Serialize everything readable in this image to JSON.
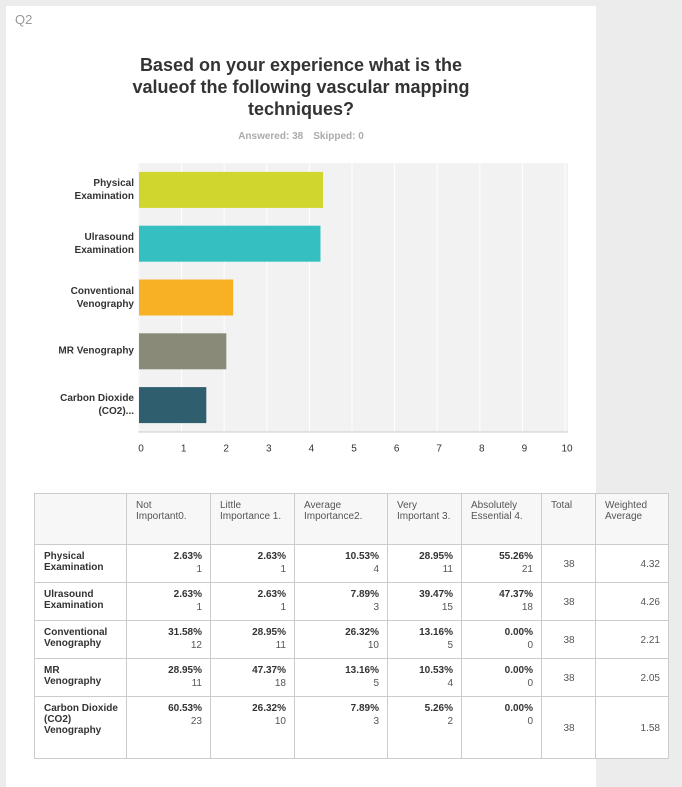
{
  "question": "Q2",
  "chart_data": {
    "type": "bar",
    "orientation": "horizontal",
    "title": "Based on your experience what is the valueof the following vascular mapping techniques?",
    "answered": "Answered: 38",
    "skipped": "Skipped: 0",
    "categories": [
      "Physical Examination",
      "Ulrasound Examination",
      "Conventional Venography",
      "MR Venography",
      "Carbon Dioxide (CO2)..."
    ],
    "values": [
      4.32,
      4.26,
      2.21,
      2.05,
      1.58
    ],
    "colors": [
      "#d0d62e",
      "#35bfc1",
      "#f8b125",
      "#898a78",
      "#2f5f6e"
    ],
    "xlim": [
      0,
      10
    ],
    "xticks": [
      0,
      1,
      2,
      3,
      4,
      5,
      6,
      7,
      8,
      9,
      10
    ],
    "grid": true
  },
  "table": {
    "header": [
      "Not Important0.",
      "Little Importance 1.",
      "Average Importance2.",
      "Very Important 3.",
      "Absolutely Essential 4.",
      "Total",
      "Weighted Average"
    ],
    "rows": [
      {
        "label": "Physical Examination",
        "cells": [
          {
            "percent": "2.63%",
            "count": 1
          },
          {
            "percent": "2.63%",
            "count": 1
          },
          {
            "percent": "10.53%",
            "count": 4
          },
          {
            "percent": "28.95%",
            "count": 11
          },
          {
            "percent": "55.26%",
            "count": 21
          }
        ],
        "total": 38
      },
      {
        "label": "Ulrasound Examination",
        "cells": [
          {
            "percent": "2.63%",
            "count": 1
          },
          {
            "percent": "2.63%",
            "count": 1
          },
          {
            "percent": "7.89%",
            "count": 3
          },
          {
            "percent": "39.47%",
            "count": 15
          },
          {
            "percent": "47.37%",
            "count": 18
          }
        ],
        "total": 38
      },
      {
        "label": "Conventional Venography",
        "cells": [
          {
            "percent": "31.58%",
            "count": 12
          },
          {
            "percent": "28.95%",
            "count": 11
          },
          {
            "percent": "26.32%",
            "count": 10
          },
          {
            "percent": "13.16%",
            "count": 5
          },
          {
            "percent": "0.00%",
            "count": 0
          }
        ],
        "total": 38
      },
      {
        "label": "MR Venography",
        "cells": [
          {
            "percent": "28.95%",
            "count": 11
          },
          {
            "percent": "47.37%",
            "count": 18
          },
          {
            "percent": "13.16%",
            "count": 5
          },
          {
            "percent": "10.53%",
            "count": 4
          },
          {
            "percent": "0.00%",
            "count": 0
          }
        ],
        "total": 38
      },
      {
        "label": "Carbon Dioxide (CO2) Venography",
        "cells": [
          {
            "percent": "60.53%",
            "count": 23
          },
          {
            "percent": "26.32%",
            "count": 10
          },
          {
            "percent": "7.89%",
            "count": 3
          },
          {
            "percent": "5.26%",
            "count": 2
          },
          {
            "percent": "0.00%",
            "count": 0
          }
        ],
        "total": 38
      }
    ]
  }
}
